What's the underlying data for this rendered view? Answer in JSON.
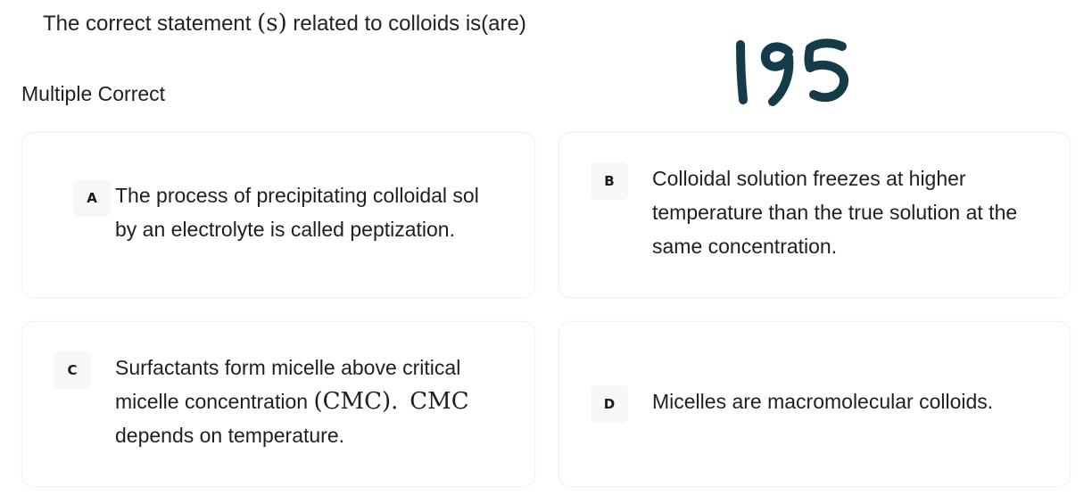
{
  "question": {
    "prefix": "The correct statement ",
    "math": "(s)",
    "suffix": " related to colloids is(are)"
  },
  "question_type": "Multiple Correct",
  "handwritten_note": "195",
  "options": [
    {
      "letter": "A",
      "lines": [
        "The process of precipitating colloidal sol",
        "by an electrolyte is called peptization."
      ]
    },
    {
      "letter": "B",
      "lines": [
        "Colloidal solution freezes at higher",
        "temperature than the true solution at the",
        "same concentration."
      ]
    },
    {
      "letter": "C",
      "line1": "Surfactants form micelle above critical",
      "line2_prefix": "micelle concentration ",
      "line2_math1": "(CMC).",
      "line2_math2": "CMC",
      "line3": "depends on temperature."
    },
    {
      "letter": "D",
      "lines": [
        "Micelles are macromolecular colloids."
      ]
    }
  ]
}
